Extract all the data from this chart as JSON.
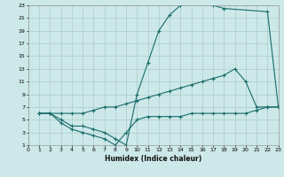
{
  "xlabel": "Humidex (Indice chaleur)",
  "bg_color": "#cce8e8",
  "grid_color": "#aacccc",
  "line_color": "#1a6b6b",
  "xlim": [
    0,
    23
  ],
  "ylim": [
    1,
    23
  ],
  "xticks": [
    0,
    1,
    2,
    3,
    4,
    5,
    6,
    7,
    8,
    9,
    10,
    11,
    12,
    13,
    14,
    15,
    16,
    17,
    18,
    19,
    20,
    21,
    22,
    23
  ],
  "yticks": [
    1,
    3,
    5,
    7,
    9,
    11,
    13,
    15,
    17,
    19,
    21,
    23
  ],
  "line1_x": [
    1,
    2,
    3,
    4,
    5,
    6,
    7,
    8,
    9,
    10,
    11,
    12,
    13,
    14,
    15,
    16,
    17,
    18,
    22,
    23
  ],
  "line1_y": [
    6,
    6,
    5,
    4,
    4,
    3.5,
    3,
    2,
    1,
    9,
    14,
    19,
    21.5,
    23,
    23.5,
    23.5,
    23,
    22.5,
    22,
    7
  ],
  "line2_x": [
    1,
    2,
    3,
    4,
    5,
    6,
    7,
    8,
    9,
    10,
    11,
    12,
    13,
    14,
    15,
    16,
    17,
    18,
    19,
    20,
    21,
    22,
    23
  ],
  "line2_y": [
    6,
    6,
    6,
    6,
    6,
    6.5,
    7,
    7,
    7.5,
    8,
    8.5,
    9,
    9.5,
    10,
    10.5,
    11,
    11.5,
    12,
    13,
    11,
    7,
    7,
    7
  ],
  "line3_x": [
    1,
    2,
    3,
    4,
    5,
    6,
    7,
    8,
    9,
    10,
    11,
    12,
    13,
    14,
    15,
    16,
    17,
    18,
    19,
    20,
    21,
    22,
    23
  ],
  "line3_y": [
    6,
    6,
    4.5,
    3.5,
    3,
    2.5,
    2,
    1,
    3,
    5,
    5.5,
    5.5,
    5.5,
    5.5,
    6,
    6,
    6,
    6,
    6,
    6,
    6.5,
    7,
    7
  ]
}
